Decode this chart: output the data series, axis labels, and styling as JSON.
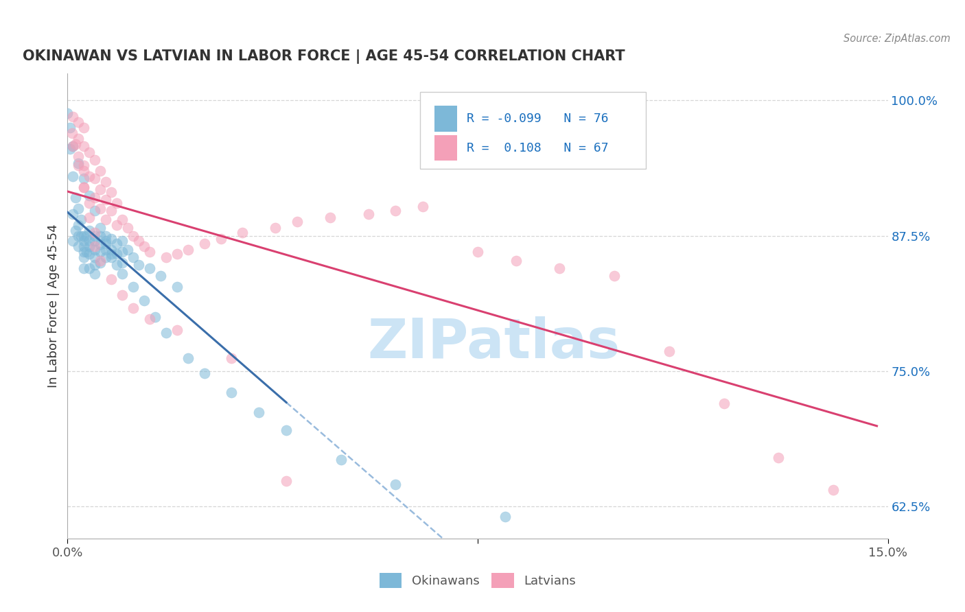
{
  "title": "OKINAWAN VS LATVIAN IN LABOR FORCE | AGE 45-54 CORRELATION CHART",
  "source_text": "Source: ZipAtlas.com",
  "ylabel": "In Labor Force | Age 45-54",
  "xlim": [
    0.0,
    0.15
  ],
  "ylim": [
    0.595,
    1.025
  ],
  "xtick_positions": [
    0.0,
    0.075,
    0.15
  ],
  "xtick_labels": [
    "0.0%",
    "",
    "15.0%"
  ],
  "ytick_positions": [
    0.625,
    0.75,
    0.875,
    1.0
  ],
  "ytick_labels": [
    "62.5%",
    "75.0%",
    "87.5%",
    "100.0%"
  ],
  "okinawan_color": "#7db8d8",
  "latvian_color": "#f4a0b8",
  "okinawan_R": -0.099,
  "okinawan_N": 76,
  "latvian_R": 0.108,
  "latvian_N": 67,
  "legend_R_color": "#1a6fbe",
  "trend_blue_color": "#3a6eaa",
  "trend_pink_color": "#d94070",
  "trend_dashed_color": "#99bbdd",
  "watermark_color": "#cce4f5",
  "background_color": "#ffffff",
  "grid_color": "#cccccc",
  "title_color": "#333333",
  "source_color": "#888888",
  "ylabel_color": "#333333",
  "tick_color": "#555555",
  "ytick_color": "#1a6fbe",
  "ok_x": [
    0.0005,
    0.001,
    0.001,
    0.001,
    0.0015,
    0.0015,
    0.002,
    0.002,
    0.002,
    0.002,
    0.0025,
    0.0025,
    0.003,
    0.003,
    0.003,
    0.003,
    0.003,
    0.003,
    0.0035,
    0.0035,
    0.004,
    0.004,
    0.004,
    0.004,
    0.004,
    0.005,
    0.005,
    0.005,
    0.005,
    0.005,
    0.005,
    0.006,
    0.006,
    0.006,
    0.006,
    0.007,
    0.007,
    0.007,
    0.007,
    0.008,
    0.008,
    0.008,
    0.009,
    0.009,
    0.01,
    0.01,
    0.01,
    0.011,
    0.012,
    0.013,
    0.015,
    0.017,
    0.02,
    0.0,
    0.0005,
    0.001,
    0.002,
    0.003,
    0.004,
    0.005,
    0.006,
    0.007,
    0.008,
    0.009,
    0.01,
    0.012,
    0.014,
    0.016,
    0.018,
    0.022,
    0.025,
    0.03,
    0.035,
    0.04,
    0.05,
    0.06,
    0.08
  ],
  "ok_y": [
    0.955,
    0.93,
    0.895,
    0.87,
    0.91,
    0.88,
    0.9,
    0.885,
    0.875,
    0.865,
    0.89,
    0.875,
    0.875,
    0.87,
    0.865,
    0.86,
    0.855,
    0.845,
    0.875,
    0.86,
    0.88,
    0.87,
    0.865,
    0.858,
    0.845,
    0.875,
    0.87,
    0.862,
    0.855,
    0.848,
    0.84,
    0.875,
    0.867,
    0.86,
    0.85,
    0.875,
    0.868,
    0.862,
    0.855,
    0.872,
    0.862,
    0.855,
    0.868,
    0.858,
    0.87,
    0.86,
    0.85,
    0.862,
    0.855,
    0.848,
    0.845,
    0.838,
    0.828,
    0.988,
    0.975,
    0.958,
    0.942,
    0.928,
    0.912,
    0.898,
    0.882,
    0.87,
    0.858,
    0.848,
    0.84,
    0.828,
    0.815,
    0.8,
    0.785,
    0.762,
    0.748,
    0.73,
    0.712,
    0.695,
    0.668,
    0.645,
    0.615
  ],
  "lv_x": [
    0.001,
    0.001,
    0.002,
    0.002,
    0.002,
    0.003,
    0.003,
    0.003,
    0.003,
    0.004,
    0.004,
    0.005,
    0.005,
    0.005,
    0.006,
    0.006,
    0.006,
    0.007,
    0.007,
    0.007,
    0.008,
    0.008,
    0.009,
    0.009,
    0.01,
    0.011,
    0.012,
    0.013,
    0.014,
    0.015,
    0.018,
    0.02,
    0.022,
    0.025,
    0.028,
    0.032,
    0.038,
    0.042,
    0.048,
    0.055,
    0.06,
    0.065,
    0.075,
    0.082,
    0.09,
    0.1,
    0.11,
    0.12,
    0.13,
    0.14,
    0.0008,
    0.0015,
    0.002,
    0.003,
    0.003,
    0.004,
    0.004,
    0.005,
    0.005,
    0.006,
    0.008,
    0.01,
    0.012,
    0.015,
    0.02,
    0.03,
    0.04
  ],
  "lv_y": [
    0.985,
    0.958,
    0.98,
    0.965,
    0.94,
    0.975,
    0.958,
    0.94,
    0.92,
    0.952,
    0.93,
    0.945,
    0.928,
    0.91,
    0.935,
    0.918,
    0.9,
    0.925,
    0.908,
    0.89,
    0.915,
    0.898,
    0.905,
    0.885,
    0.89,
    0.882,
    0.875,
    0.87,
    0.865,
    0.86,
    0.855,
    0.858,
    0.862,
    0.868,
    0.872,
    0.878,
    0.882,
    0.888,
    0.892,
    0.895,
    0.898,
    0.902,
    0.86,
    0.852,
    0.845,
    0.838,
    0.768,
    0.72,
    0.67,
    0.64,
    0.97,
    0.96,
    0.948,
    0.935,
    0.92,
    0.905,
    0.892,
    0.878,
    0.865,
    0.852,
    0.835,
    0.82,
    0.808,
    0.798,
    0.788,
    0.762,
    0.648
  ]
}
